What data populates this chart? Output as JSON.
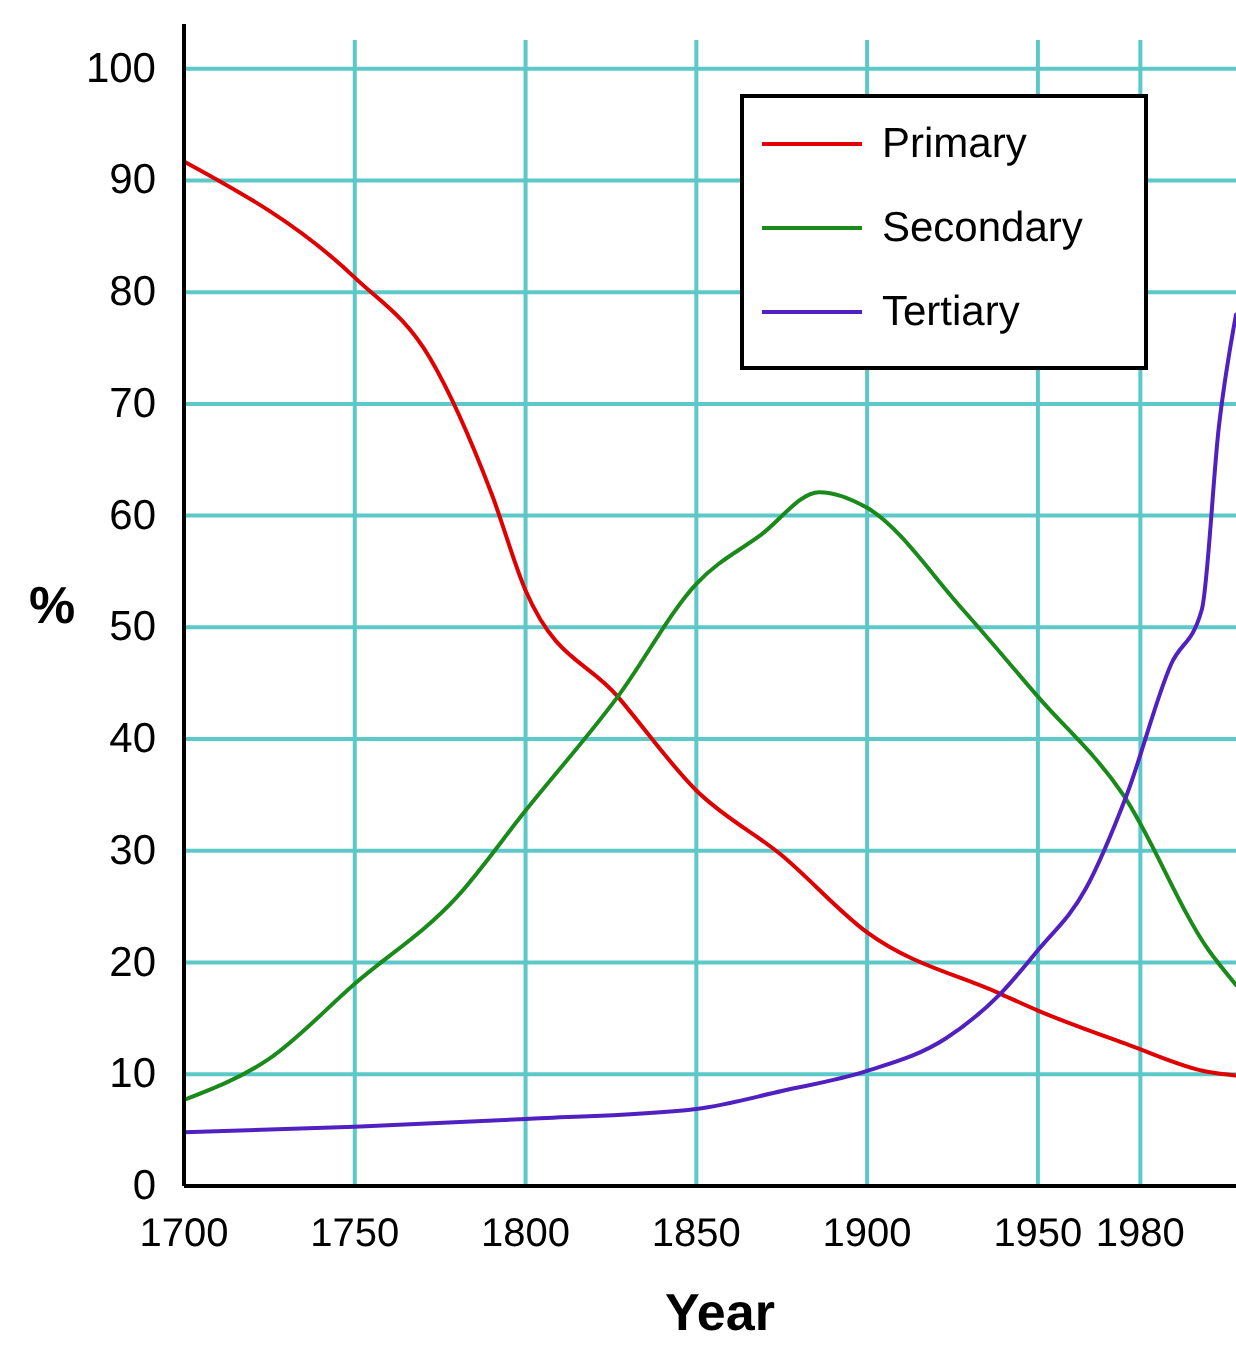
{
  "chart_data": {
    "type": "line",
    "xlabel": "Year",
    "ylabel": "%",
    "xlim": [
      1700,
      2008
    ],
    "xticks": [
      1700,
      1750,
      1800,
      1850,
      1900,
      1950,
      1980
    ],
    "ylim": [
      0,
      104
    ],
    "yticks": [
      0,
      10,
      20,
      30,
      40,
      50,
      60,
      70,
      80,
      90,
      100
    ],
    "grid": true,
    "legend": "top right",
    "marker": "none",
    "line_style": "solid",
    "series": [
      {
        "name": "Primary",
        "color": "#e00000",
        "x": [
          1700,
          1750,
          1772,
          1790,
          1800,
          1827,
          1850,
          1875,
          1900,
          1939,
          1950,
          1976,
          2000,
          2008
        ],
        "values": [
          91.7,
          81.3,
          74.1,
          62,
          53.3,
          43.8,
          35.4,
          29.6,
          22.7,
          17.2,
          15.7,
          12.7,
          10.2,
          9.9
        ]
      },
      {
        "name": "Secondary",
        "color": "#1a8a1a",
        "x": [
          1700,
          1725,
          1750,
          1780,
          1800,
          1827,
          1850,
          1869,
          1886,
          1900,
          1928,
          1950,
          1975,
          2000,
          2008
        ],
        "values": [
          7.7,
          11.4,
          18.1,
          25.9,
          33.6,
          43.8,
          53.9,
          58.3,
          62.1,
          60.7,
          51.6,
          43.8,
          35,
          21.1,
          18
        ]
      },
      {
        "name": "Tertiary",
        "color": "#5020c0",
        "x": [
          1700,
          1750,
          1800,
          1850,
          1875,
          1900,
          1923,
          1939,
          1950,
          1964,
          1976,
          1989,
          1998,
          2003,
          2008
        ],
        "values": [
          4.8,
          5.3,
          6,
          6.9,
          8.5,
          10.3,
          13.2,
          17.2,
          21.1,
          26.6,
          35,
          46.7,
          51.6,
          68,
          78
        ]
      }
    ]
  }
}
